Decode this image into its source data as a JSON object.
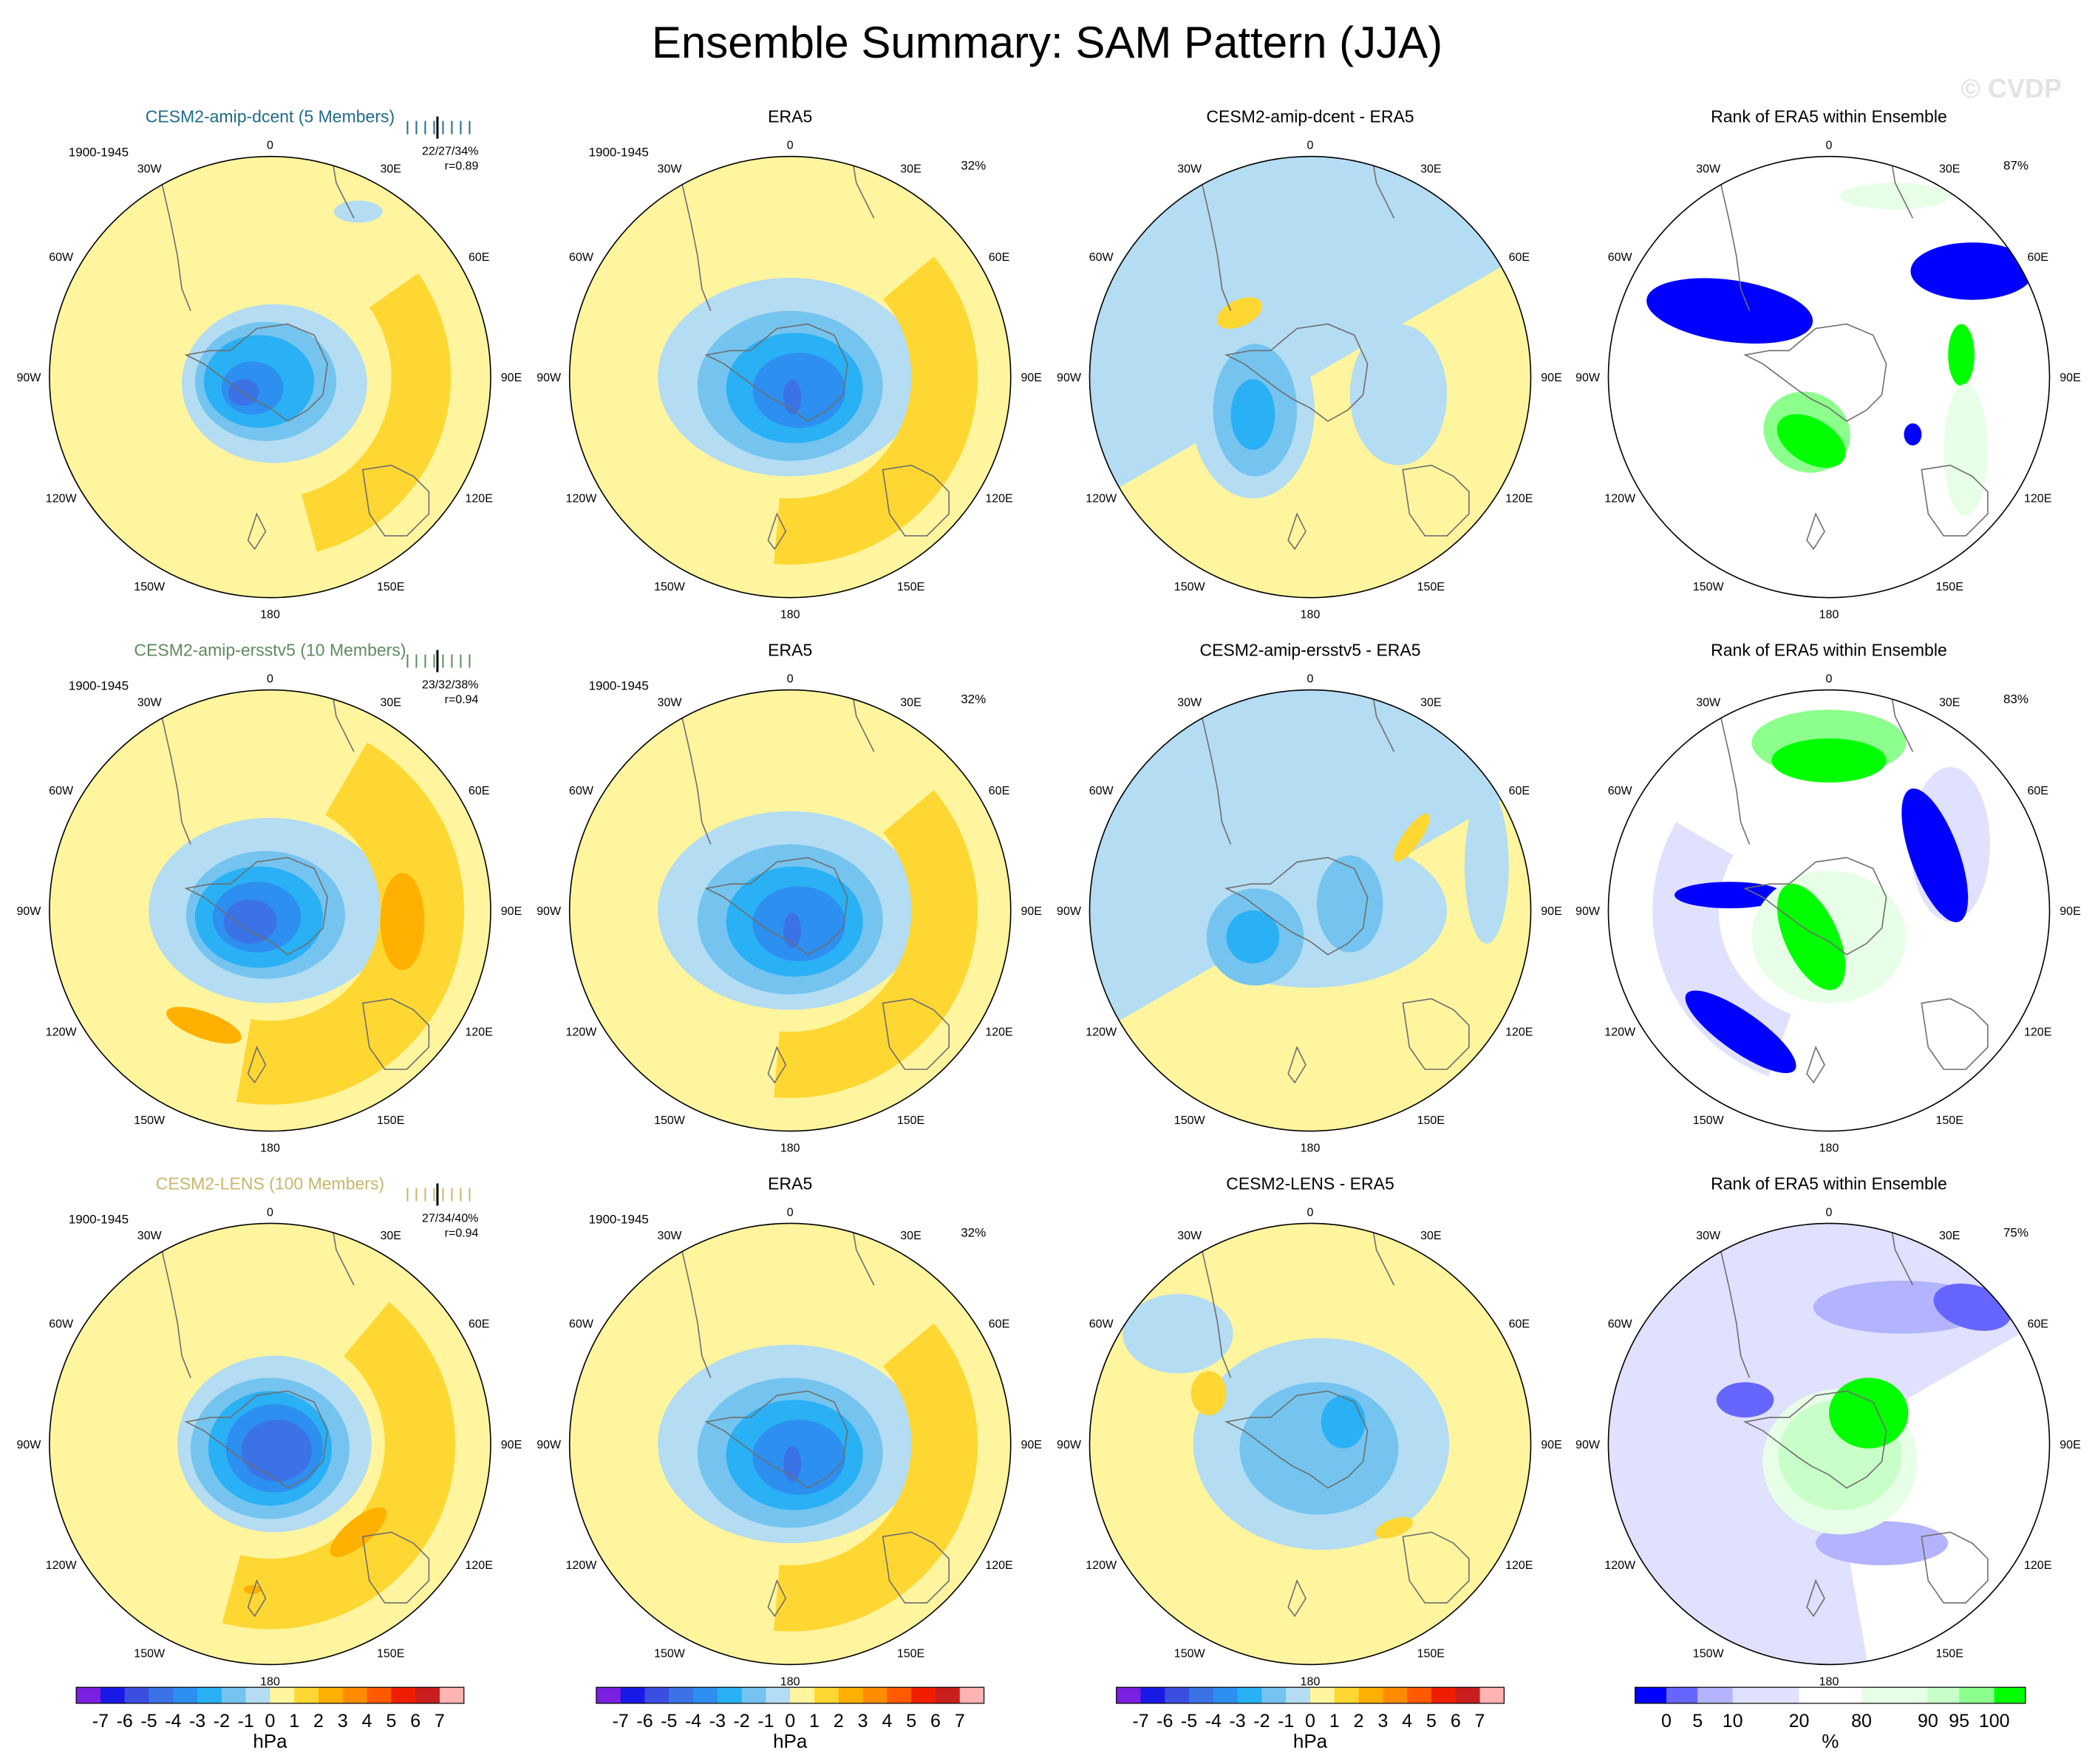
{
  "title": "Ensemble Summary: SAM Pattern (JJA)",
  "watermark": "© CVDP",
  "period": "1900-1945",
  "lon_labels": [
    "0",
    "30E",
    "60E",
    "90E",
    "120E",
    "150E",
    "180",
    "150W",
    "120W",
    "90W",
    "60W",
    "30W"
  ],
  "colors": {
    "land_outline": "#6e6e6e",
    "rank": [
      "#0000ff",
      "#6666ff",
      "#b3b3ff",
      "#e0e0ff",
      "#ffffff",
      "#e6ffe6",
      "#c8ffc8",
      "#8cff8c",
      "#00ff00"
    ]
  },
  "rows": [
    {
      "model_title": "CESM2-amip-dcent (5 Members)",
      "model_title_color": "#1f6b8a",
      "model_stats": "22/27/34%",
      "model_r": "r=0.89",
      "obs_title": "ERA5",
      "obs_pct": "32%",
      "diff_title": "CESM2-amip-dcent - ERA5",
      "rank_title": "Rank of ERA5 within Ensemble",
      "rank_pct": "87%"
    },
    {
      "model_title": "CESM2-amip-ersstv5 (10 Members)",
      "model_title_color": "#5e8a5e",
      "model_stats": "23/32/38%",
      "model_r": "r=0.94",
      "obs_title": "ERA5",
      "obs_pct": "32%",
      "diff_title": "CESM2-amip-ersstv5 - ERA5",
      "rank_title": "Rank of ERA5 within Ensemble",
      "rank_pct": "83%"
    },
    {
      "model_title": "CESM2-LENS (100 Members)",
      "model_title_color": "#c9b56a",
      "model_stats": "27/34/40%",
      "model_r": "r=0.94",
      "obs_title": "ERA5",
      "obs_pct": "32%",
      "diff_title": "CESM2-LENS - ERA5",
      "rank_title": "Rank of ERA5 within Ensemble",
      "rank_pct": "75%"
    }
  ],
  "chart_data": {
    "type": "heatmap",
    "projection": "south-polar-stereographic",
    "units": "hPa",
    "pressure_colorbar": {
      "labels": [
        "-7",
        "-6",
        "-5",
        "-4",
        "-3",
        "-2",
        "-1",
        "0",
        "1",
        "2",
        "3",
        "4",
        "5",
        "6",
        "7"
      ],
      "colors": [
        "#7b1fe0",
        "#1a1ae6",
        "#3a4fe0",
        "#3b73e6",
        "#2d8fef",
        "#2ab0f5",
        "#74c4ef",
        "#b4dcf2",
        "#fff59e",
        "#ffd733",
        "#ffb000",
        "#ff8c00",
        "#ff5a00",
        "#f01e00",
        "#c81e1e",
        "#ffb3b3"
      ],
      "unit_label": "hPa"
    },
    "rank_colorbar": {
      "labels": [
        "0",
        "5",
        "10",
        "20",
        "80",
        "90",
        "95",
        "100"
      ],
      "unit_label": "%"
    }
  }
}
